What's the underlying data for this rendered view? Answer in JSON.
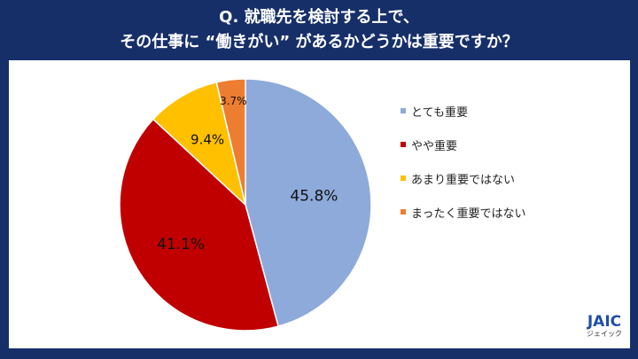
{
  "header": {
    "title_line1": "Q. 就職先を検討する上で、",
    "title_line2": "その仕事に “働きがい” があるかどうかは重要ですか？"
  },
  "colors": {
    "background": "#172f69",
    "panel": "#ffffff",
    "logo": "#1f4fa8"
  },
  "chart_data": {
    "type": "pie",
    "title": "Q. 就職先を検討する上で、その仕事に “働きがい” があるかどうかは重要ですか？",
    "categories": [
      "とても重要",
      "やや重要",
      "あまり重要ではない",
      "まったく重要ではない"
    ],
    "values": [
      45.8,
      41.1,
      9.4,
      3.7
    ],
    "labels": [
      "45.8%",
      "41.1%",
      "9.4%",
      "3.7%"
    ],
    "colors": [
      "#8eaadb",
      "#c00000",
      "#ffc000",
      "#ed7d31"
    ],
    "start_angle": "12 o'clock, clockwise",
    "legend_position": "right"
  },
  "legend": {
    "items": [
      {
        "label": "とても重要",
        "color": "#8eaadb"
      },
      {
        "label": "やや重要",
        "color": "#c00000"
      },
      {
        "label": "あまり重要ではない",
        "color": "#ffc000"
      },
      {
        "label": "まったく重要ではない",
        "color": "#ed7d31"
      }
    ]
  },
  "logo": {
    "main": "JAIC",
    "sub": "ジェイック"
  }
}
